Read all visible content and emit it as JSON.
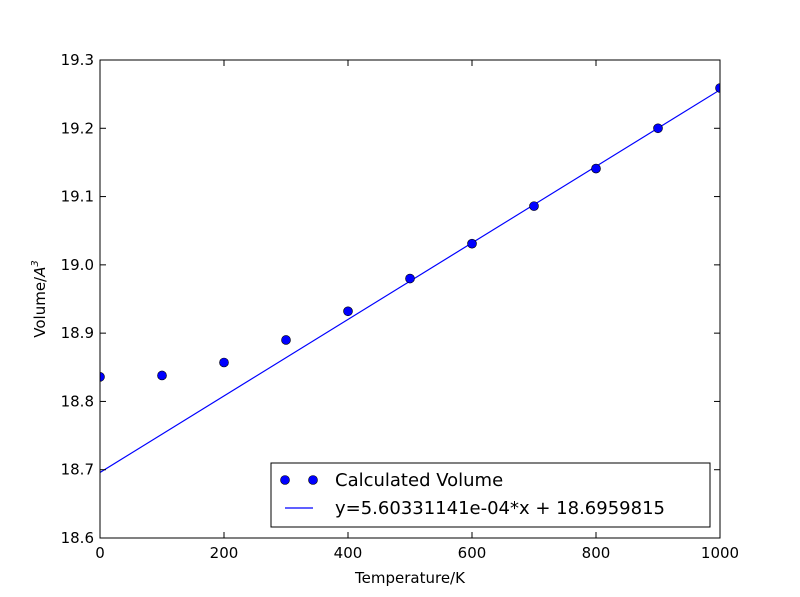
{
  "chart_data": {
    "type": "scatter",
    "xlabel": "Temperature/K",
    "ylabel": {
      "text": "Volume/",
      "unit_base": "A",
      "unit_exp": "3"
    },
    "xlim": [
      0,
      1000
    ],
    "ylim": [
      18.6,
      19.3
    ],
    "x_ticks": [
      "0",
      "200",
      "400",
      "600",
      "800",
      "1000"
    ],
    "y_ticks": [
      "18.6",
      "18.7",
      "18.8",
      "18.9",
      "19.0",
      "19.1",
      "19.2",
      "19.3"
    ],
    "grid": false,
    "legend_position": "lower-right",
    "series": [
      {
        "name": "Calculated Volume",
        "kind": "markers",
        "color": "#0000ff",
        "x": [
          0,
          100,
          200,
          300,
          400,
          500,
          600,
          700,
          800,
          900,
          1000
        ],
        "y": [
          18.836,
          18.838,
          18.857,
          18.89,
          18.932,
          18.98,
          19.031,
          19.086,
          19.141,
          19.2,
          19.259
        ]
      },
      {
        "name": "y=5.60331141e-04*x + 18.6959815",
        "kind": "line",
        "color": "#0000ff",
        "slope": 0.000560331141,
        "intercept": 18.6959815
      }
    ]
  }
}
